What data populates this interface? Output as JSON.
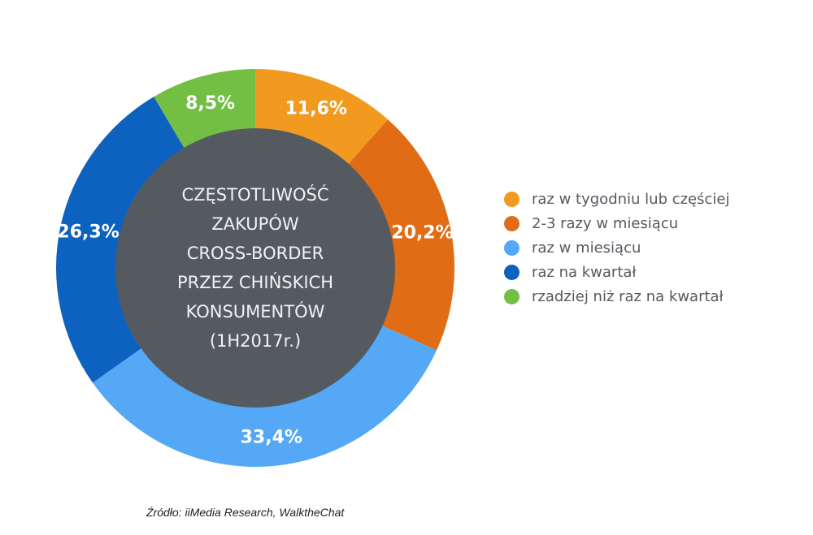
{
  "chart_data": {
    "type": "pie",
    "donut": true,
    "center_title_lines": [
      "CZĘSTOTLIWOŚĆ",
      "ZAKUPÓW",
      "CROSS-BORDER",
      "PRZEZ CHIŃSKICH",
      "KONSUMENTÓW",
      "(1H2017r.)"
    ],
    "slices": [
      {
        "label": "raz w tygodniu lub częściej",
        "value": 11.6,
        "display": "11,6%",
        "color": "#f29a1f"
      },
      {
        "label": "2-3 razy w miesiącu",
        "value": 20.2,
        "display": "20,2%",
        "color": "#e06c16"
      },
      {
        "label": "raz w miesiącu",
        "value": 33.4,
        "display": "33,4%",
        "color": "#54a8f5"
      },
      {
        "label": "raz na kwartał",
        "value": 26.3,
        "display": "26,3%",
        "color": "#0d62c0"
      },
      {
        "label": "rzadziej niż raz na kwartał",
        "value": 8.5,
        "display": "8,5%",
        "color": "#72bf44"
      }
    ],
    "legend": {
      "position": "right",
      "items": [
        {
          "label": "raz w tygodniu lub częściej",
          "color": "#f29a1f"
        },
        {
          "label": "2-3 razy w miesiącu",
          "color": "#e06c16"
        },
        {
          "label": "raz w miesiącu",
          "color": "#54a8f5"
        },
        {
          "label": "raz na kwartał",
          "color": "#0d62c0"
        },
        {
          "label": "rzadziej niż raz na kwartał",
          "color": "#72bf44"
        }
      ]
    },
    "colors": {
      "center_fill": "#555a60",
      "slice_text": "#ffffff",
      "center_text": "#f2f2f2"
    }
  },
  "source": "Źródło: iiMedia Research, WalktheChat"
}
